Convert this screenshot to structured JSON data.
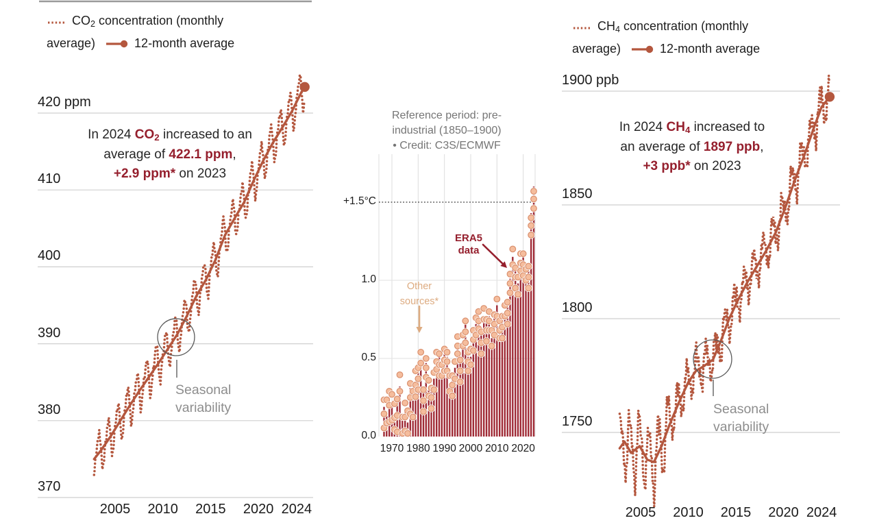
{
  "colors": {
    "terracotta": "#b4573e",
    "dark_red": "#951f2d",
    "bar_red": "#9f2a35",
    "circle_fill": "#f5bd9d",
    "circle_edge": "#d98f6d",
    "tan": "#ddab80",
    "gray_label": "#8d8d8d",
    "header_gray": "#757575",
    "grid": "#cfcfcf",
    "grid_light": "#e2e2e2",
    "axis_text": "#1b1b1b",
    "threshold_line": "#333333",
    "ring_stroke": "#595959"
  },
  "ui": {
    "co2_legend": {
      "base": "CO",
      "sub": "2",
      "rest": " concentration (monthly",
      "wrap": "average)",
      "avg": "12-month average"
    },
    "ch4_legend": {
      "base": "CH",
      "sub": "4",
      "rest": " concentration (monthly",
      "wrap": "average)",
      "avg": "12-month average"
    },
    "co2_annotation": {
      "l1a": "In 2024 ",
      "base": "CO",
      "sub": "2",
      "l1b": " increased to an",
      "l2a": "average of ",
      "l2b": "422.1 ppm",
      "l2c": ",",
      "l3a": "+2.9 ppm*",
      "l3b": " on 2023"
    },
    "ch4_annotation": {
      "l1a": "In 2024 ",
      "base": "CH",
      "sub": "4",
      "l1b": " increased to",
      "l2a": "an average of ",
      "l2b": "1897 ppb",
      "l2c": ",",
      "l3a": "+3 ppb*",
      "l3b": " on 2023"
    },
    "temp_header": {
      "line1": "Reference period: pre-",
      "line2": "industrial (1850–1900)",
      "line3": "• Credit: C3S/ECMWF"
    },
    "era5_label": {
      "line1": "ERA5",
      "line2": "data"
    },
    "other_sources_label": {
      "line1": "Other",
      "line2": "sources*"
    },
    "seasonal_label": {
      "line1": "Seasonal",
      "line2": "variability"
    }
  },
  "chart_data": [
    {
      "id": "co2",
      "type": "line",
      "title": "CO2 concentration (monthly average) and 12-month average",
      "unit": "ppm",
      "ylim": [
        370,
        424
      ],
      "xlim": [
        2002.8,
        2025
      ],
      "value_2024": 422.1,
      "change_on_2023": 2.9,
      "yticks": {
        "values": [
          420,
          410,
          400,
          390,
          380,
          370
        ],
        "labels": [
          "420 ppm",
          "410",
          "400",
          "390",
          "380",
          "370"
        ]
      },
      "xticks": {
        "values": [
          2005,
          2010,
          2015,
          2020,
          2024
        ],
        "labels": [
          "2005",
          "2010",
          "2015",
          "2020",
          "2024"
        ]
      },
      "twelve_month_anchors": [
        [
          2002.8,
          375.0
        ],
        [
          2003.5,
          376.1
        ],
        [
          2004.5,
          377.9
        ],
        [
          2005.5,
          379.9
        ],
        [
          2006.5,
          381.9
        ],
        [
          2007.5,
          383.8
        ],
        [
          2008.5,
          385.6
        ],
        [
          2009.5,
          387.4
        ],
        [
          2010.5,
          389.3
        ],
        [
          2011.5,
          391.2
        ],
        [
          2012.5,
          393.6
        ],
        [
          2013.5,
          396.2
        ],
        [
          2014.5,
          398.3
        ],
        [
          2015.5,
          400.9
        ],
        [
          2016.5,
          404.1
        ],
        [
          2017.5,
          406.3
        ],
        [
          2018.5,
          408.4
        ],
        [
          2019.5,
          411.2
        ],
        [
          2020.5,
          413.8
        ],
        [
          2021.5,
          416.1
        ],
        [
          2022.5,
          418.1
        ],
        [
          2023.5,
          420.2
        ],
        [
          2024.5,
          422.7
        ],
        [
          2024.85,
          423.4
        ]
      ],
      "monthly_seasonal_cycle": [
        0.2,
        0.9,
        1.7,
        2.4,
        2.9,
        2.2,
        0.6,
        -1.5,
        -2.9,
        -3.1,
        -2.0,
        -0.6
      ],
      "monthly_amp": {
        "before_2008": 0.9,
        "after": 0.9
      },
      "monthly_noise_cycle": [
        0.4,
        -0.3,
        0.5,
        -0.5,
        0.2,
        0.5,
        -0.2,
        0.6,
        -0.4,
        0.1,
        0.3,
        -0.6,
        0.5,
        -0.1,
        0.3,
        -0.4,
        0.1
      ],
      "end_point": {
        "year": 2024.85,
        "value": 423.4
      }
    },
    {
      "id": "temperature_anomaly",
      "type": "bar",
      "title": "Global temperature anomaly vs pre-industrial (1850-1900), ERA5",
      "unit": "°C",
      "start_year": 1967,
      "values": [
        0.19,
        0.16,
        0.26,
        0.21,
        0.12,
        0.21,
        0.32,
        0.11,
        0.17,
        0.09,
        0.31,
        0.23,
        0.33,
        0.42,
        0.49,
        0.29,
        0.47,
        0.31,
        0.29,
        0.37,
        0.48,
        0.51,
        0.41,
        0.55,
        0.51,
        0.34,
        0.37,
        0.44,
        0.58,
        0.47,
        0.6,
        0.73,
        0.51,
        0.51,
        0.66,
        0.72,
        0.74,
        0.65,
        0.77,
        0.74,
        0.77,
        0.63,
        0.76,
        0.84,
        0.68,
        0.75,
        0.79,
        0.85,
        1.01,
        1.15,
        1.06,
        0.98,
        1.11,
        1.15,
        1.02,
        1.08,
        1.43,
        1.6
      ],
      "threshold_value": 1.5,
      "ylim": [
        0,
        1.8
      ],
      "yticks": {
        "values": [
          1.5,
          1.0,
          0.5,
          0.0
        ],
        "labels": [
          "+1.5°C",
          "1.0",
          "0.5",
          "0.0"
        ]
      },
      "xticks": {
        "values": [
          1970,
          1980,
          1990,
          2000,
          2010,
          2020
        ],
        "labels": [
          "1970",
          "1980",
          "1990",
          "2000",
          "2010",
          "2020"
        ]
      },
      "other_sources": {
        "offset_patterns": [
          [
            0.03,
            -0.03,
            -0.09
          ],
          [
            0.05,
            -0.05
          ],
          [
            -0.04,
            0.02,
            -0.11
          ],
          [
            0.04,
            -0.07
          ],
          [
            0.06,
            0.0,
            -0.05
          ],
          [
            -0.05,
            -0.12,
            0.02
          ],
          [
            0.05,
            -0.02
          ],
          [
            0.01,
            -0.06,
            -0.13
          ]
        ],
        "early_multiplier": 1.5,
        "early_before_year": 1980,
        "recent_offsets": [
          -0.03,
          -0.08,
          -0.14
        ],
        "recent_from_year": 2023
      }
    },
    {
      "id": "ch4",
      "type": "line",
      "title": "CH4 concentration (monthly average) and 12-month average",
      "unit": "ppb",
      "ylim": [
        1720,
        1910
      ],
      "xlim": [
        2002.8,
        2025
      ],
      "value_2024": 1897,
      "change_on_2023": 3,
      "yticks": {
        "values": [
          1900,
          1850,
          1800,
          1750
        ],
        "labels": [
          "1900 ppb",
          "1850",
          "1800",
          "1750"
        ]
      },
      "xticks": {
        "values": [
          2005,
          2010,
          2015,
          2020,
          2024
        ],
        "labels": [
          "2005",
          "2010",
          "2015",
          "2020",
          "2024"
        ]
      },
      "twelve_month_anchors": [
        [
          2002.8,
          1743
        ],
        [
          2003.3,
          1746
        ],
        [
          2004.0,
          1741
        ],
        [
          2004.9,
          1744
        ],
        [
          2005.7,
          1738
        ],
        [
          2006.4,
          1737
        ],
        [
          2007.2,
          1744
        ],
        [
          2008.0,
          1753
        ],
        [
          2009.0,
          1763
        ],
        [
          2010.0,
          1772
        ],
        [
          2010.8,
          1777
        ],
        [
          2011.6,
          1779
        ],
        [
          2012.6,
          1782
        ],
        [
          2013.4,
          1790
        ],
        [
          2014.3,
          1800
        ],
        [
          2015.2,
          1808
        ],
        [
          2016.2,
          1816
        ],
        [
          2017.2,
          1823
        ],
        [
          2018.2,
          1830
        ],
        [
          2019.2,
          1838
        ],
        [
          2020.2,
          1849
        ],
        [
          2021.2,
          1861
        ],
        [
          2022.2,
          1872
        ],
        [
          2023.2,
          1884
        ],
        [
          2024.0,
          1893
        ],
        [
          2024.85,
          1897.5
        ]
      ],
      "monthly_seasonal_cycle": [
        8,
        4,
        -1,
        -6,
        -10,
        -13,
        -10,
        -3,
        4,
        10,
        12,
        8
      ],
      "monthly_amp": {
        "before_2008": 1.25,
        "after": 0.7
      },
      "monthly_noise_cycle": [
        3,
        -3,
        4,
        -2,
        3.5,
        -4.5,
        1,
        5,
        -2,
        0.5,
        3,
        -3.5,
        4.5,
        -1,
        2,
        -5,
        1.5
      ],
      "end_point": {
        "year": 2024.85,
        "value": 1897.5
      }
    }
  ]
}
